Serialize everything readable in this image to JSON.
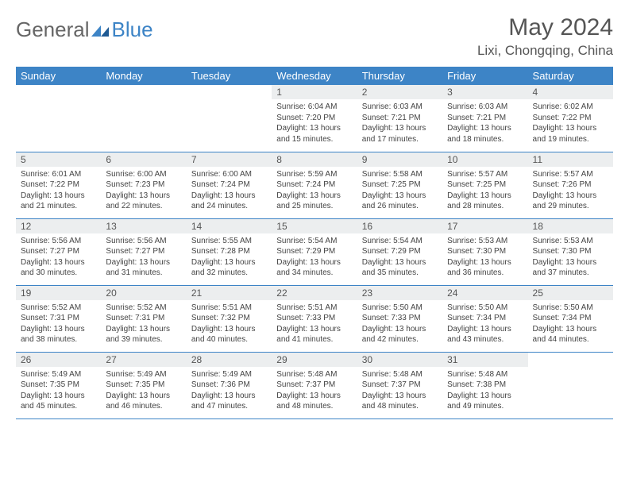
{
  "logo": {
    "text1": "General",
    "text2": "Blue"
  },
  "title": "May 2024",
  "location": "Lixi, Chongqing, China",
  "colors": {
    "header_bg": "#3d84c6",
    "header_text": "#ffffff",
    "daynum_bg": "#eceeef",
    "border": "#3d84c6",
    "text": "#444444"
  },
  "weekdays": [
    "Sunday",
    "Monday",
    "Tuesday",
    "Wednesday",
    "Thursday",
    "Friday",
    "Saturday"
  ],
  "weeks": [
    [
      {
        "n": "",
        "sr": "",
        "ss": "",
        "dl": ""
      },
      {
        "n": "",
        "sr": "",
        "ss": "",
        "dl": ""
      },
      {
        "n": "",
        "sr": "",
        "ss": "",
        "dl": ""
      },
      {
        "n": "1",
        "sr": "Sunrise: 6:04 AM",
        "ss": "Sunset: 7:20 PM",
        "dl": "Daylight: 13 hours and 15 minutes."
      },
      {
        "n": "2",
        "sr": "Sunrise: 6:03 AM",
        "ss": "Sunset: 7:21 PM",
        "dl": "Daylight: 13 hours and 17 minutes."
      },
      {
        "n": "3",
        "sr": "Sunrise: 6:03 AM",
        "ss": "Sunset: 7:21 PM",
        "dl": "Daylight: 13 hours and 18 minutes."
      },
      {
        "n": "4",
        "sr": "Sunrise: 6:02 AM",
        "ss": "Sunset: 7:22 PM",
        "dl": "Daylight: 13 hours and 19 minutes."
      }
    ],
    [
      {
        "n": "5",
        "sr": "Sunrise: 6:01 AM",
        "ss": "Sunset: 7:22 PM",
        "dl": "Daylight: 13 hours and 21 minutes."
      },
      {
        "n": "6",
        "sr": "Sunrise: 6:00 AM",
        "ss": "Sunset: 7:23 PM",
        "dl": "Daylight: 13 hours and 22 minutes."
      },
      {
        "n": "7",
        "sr": "Sunrise: 6:00 AM",
        "ss": "Sunset: 7:24 PM",
        "dl": "Daylight: 13 hours and 24 minutes."
      },
      {
        "n": "8",
        "sr": "Sunrise: 5:59 AM",
        "ss": "Sunset: 7:24 PM",
        "dl": "Daylight: 13 hours and 25 minutes."
      },
      {
        "n": "9",
        "sr": "Sunrise: 5:58 AM",
        "ss": "Sunset: 7:25 PM",
        "dl": "Daylight: 13 hours and 26 minutes."
      },
      {
        "n": "10",
        "sr": "Sunrise: 5:57 AM",
        "ss": "Sunset: 7:25 PM",
        "dl": "Daylight: 13 hours and 28 minutes."
      },
      {
        "n": "11",
        "sr": "Sunrise: 5:57 AM",
        "ss": "Sunset: 7:26 PM",
        "dl": "Daylight: 13 hours and 29 minutes."
      }
    ],
    [
      {
        "n": "12",
        "sr": "Sunrise: 5:56 AM",
        "ss": "Sunset: 7:27 PM",
        "dl": "Daylight: 13 hours and 30 minutes."
      },
      {
        "n": "13",
        "sr": "Sunrise: 5:56 AM",
        "ss": "Sunset: 7:27 PM",
        "dl": "Daylight: 13 hours and 31 minutes."
      },
      {
        "n": "14",
        "sr": "Sunrise: 5:55 AM",
        "ss": "Sunset: 7:28 PM",
        "dl": "Daylight: 13 hours and 32 minutes."
      },
      {
        "n": "15",
        "sr": "Sunrise: 5:54 AM",
        "ss": "Sunset: 7:29 PM",
        "dl": "Daylight: 13 hours and 34 minutes."
      },
      {
        "n": "16",
        "sr": "Sunrise: 5:54 AM",
        "ss": "Sunset: 7:29 PM",
        "dl": "Daylight: 13 hours and 35 minutes."
      },
      {
        "n": "17",
        "sr": "Sunrise: 5:53 AM",
        "ss": "Sunset: 7:30 PM",
        "dl": "Daylight: 13 hours and 36 minutes."
      },
      {
        "n": "18",
        "sr": "Sunrise: 5:53 AM",
        "ss": "Sunset: 7:30 PM",
        "dl": "Daylight: 13 hours and 37 minutes."
      }
    ],
    [
      {
        "n": "19",
        "sr": "Sunrise: 5:52 AM",
        "ss": "Sunset: 7:31 PM",
        "dl": "Daylight: 13 hours and 38 minutes."
      },
      {
        "n": "20",
        "sr": "Sunrise: 5:52 AM",
        "ss": "Sunset: 7:31 PM",
        "dl": "Daylight: 13 hours and 39 minutes."
      },
      {
        "n": "21",
        "sr": "Sunrise: 5:51 AM",
        "ss": "Sunset: 7:32 PM",
        "dl": "Daylight: 13 hours and 40 minutes."
      },
      {
        "n": "22",
        "sr": "Sunrise: 5:51 AM",
        "ss": "Sunset: 7:33 PM",
        "dl": "Daylight: 13 hours and 41 minutes."
      },
      {
        "n": "23",
        "sr": "Sunrise: 5:50 AM",
        "ss": "Sunset: 7:33 PM",
        "dl": "Daylight: 13 hours and 42 minutes."
      },
      {
        "n": "24",
        "sr": "Sunrise: 5:50 AM",
        "ss": "Sunset: 7:34 PM",
        "dl": "Daylight: 13 hours and 43 minutes."
      },
      {
        "n": "25",
        "sr": "Sunrise: 5:50 AM",
        "ss": "Sunset: 7:34 PM",
        "dl": "Daylight: 13 hours and 44 minutes."
      }
    ],
    [
      {
        "n": "26",
        "sr": "Sunrise: 5:49 AM",
        "ss": "Sunset: 7:35 PM",
        "dl": "Daylight: 13 hours and 45 minutes."
      },
      {
        "n": "27",
        "sr": "Sunrise: 5:49 AM",
        "ss": "Sunset: 7:35 PM",
        "dl": "Daylight: 13 hours and 46 minutes."
      },
      {
        "n": "28",
        "sr": "Sunrise: 5:49 AM",
        "ss": "Sunset: 7:36 PM",
        "dl": "Daylight: 13 hours and 47 minutes."
      },
      {
        "n": "29",
        "sr": "Sunrise: 5:48 AM",
        "ss": "Sunset: 7:37 PM",
        "dl": "Daylight: 13 hours and 48 minutes."
      },
      {
        "n": "30",
        "sr": "Sunrise: 5:48 AM",
        "ss": "Sunset: 7:37 PM",
        "dl": "Daylight: 13 hours and 48 minutes."
      },
      {
        "n": "31",
        "sr": "Sunrise: 5:48 AM",
        "ss": "Sunset: 7:38 PM",
        "dl": "Daylight: 13 hours and 49 minutes."
      },
      {
        "n": "",
        "sr": "",
        "ss": "",
        "dl": ""
      }
    ]
  ]
}
